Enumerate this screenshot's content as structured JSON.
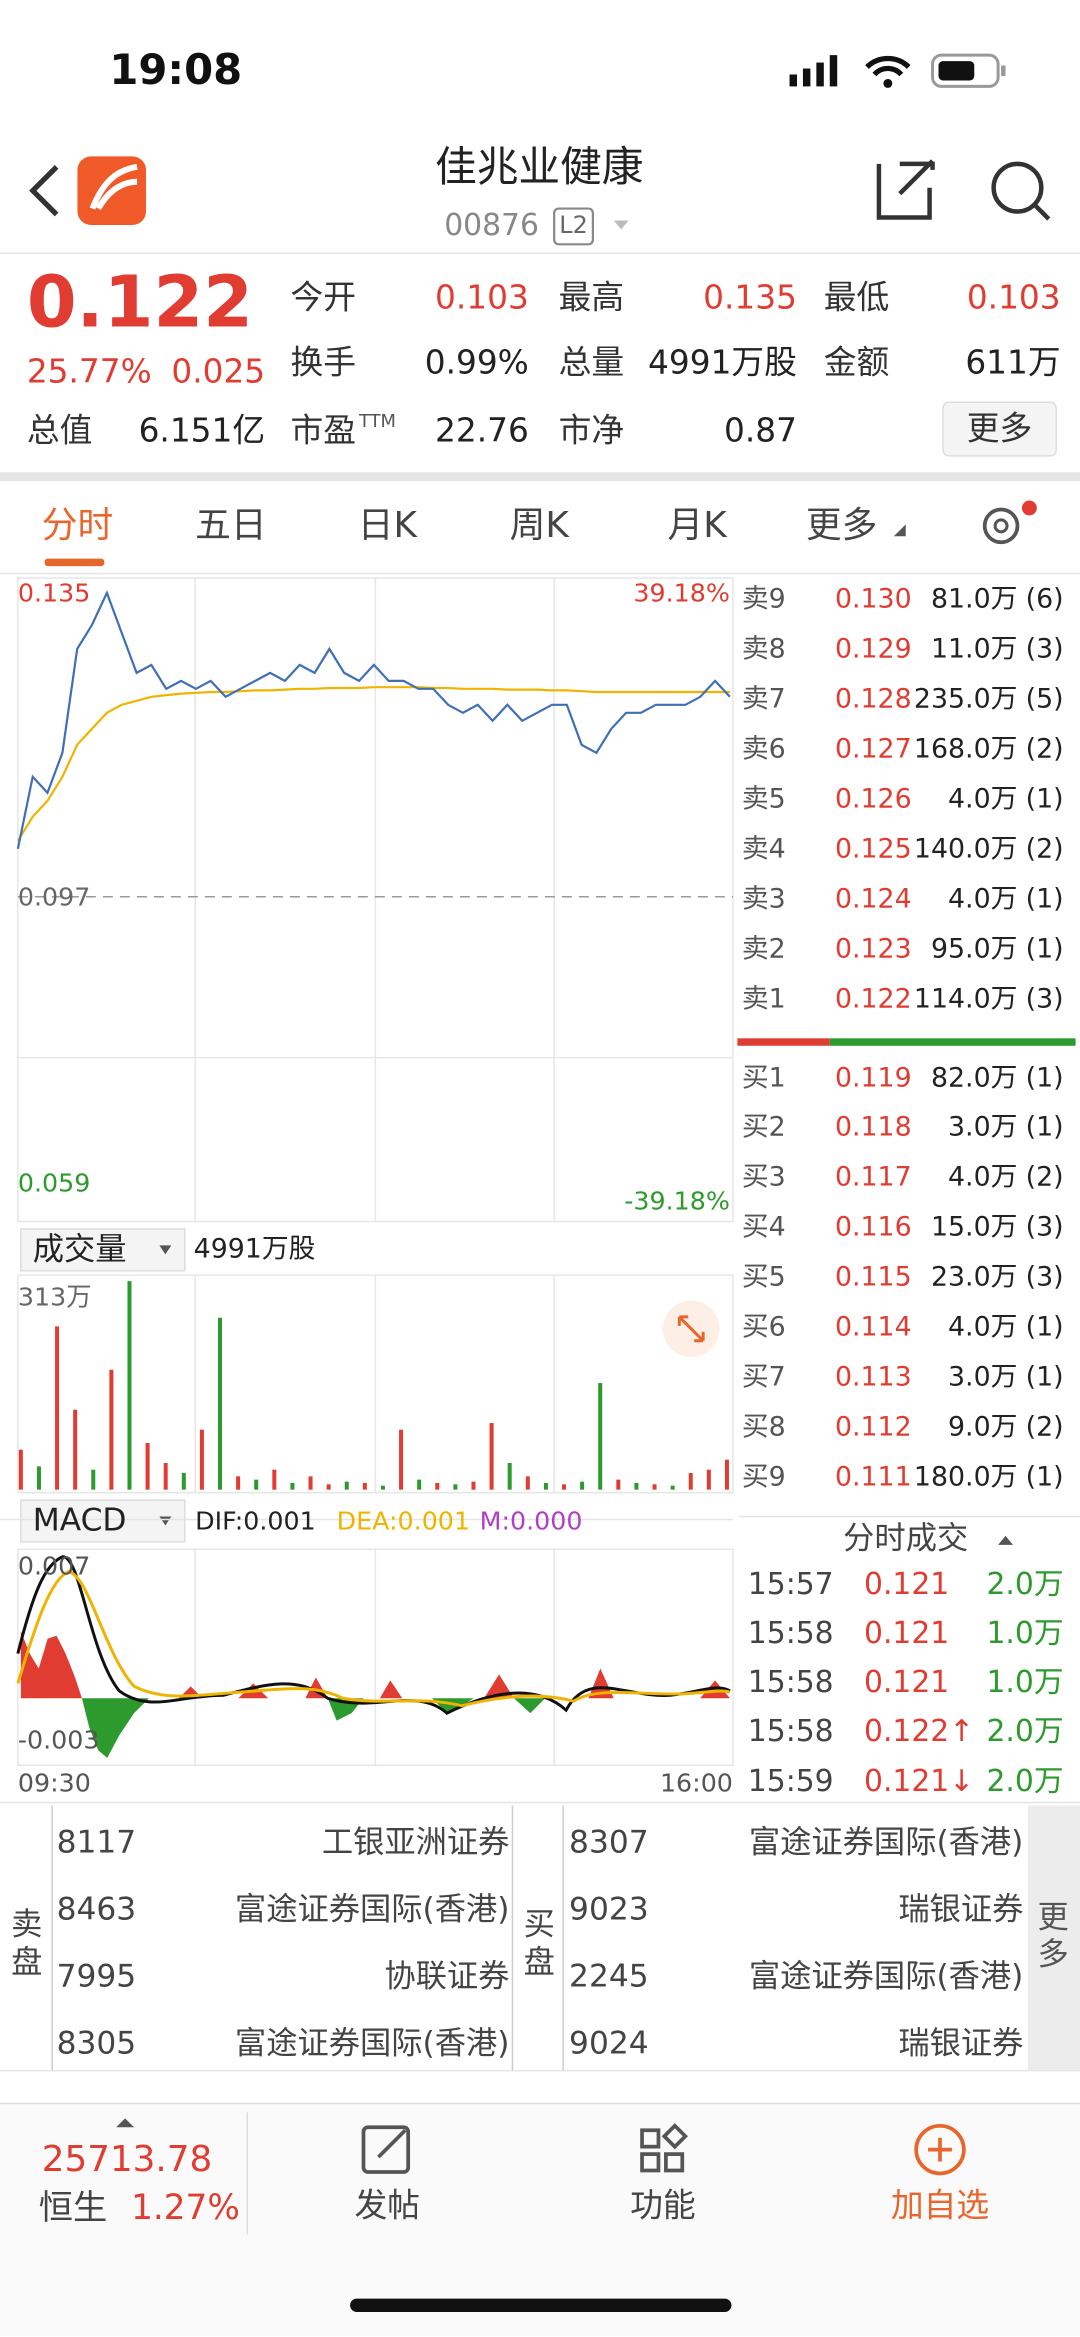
{
  "status": {
    "time": "19:08"
  },
  "header": {
    "title": "佳兆业健康",
    "code": "00876",
    "level": "L2"
  },
  "quote": {
    "price": "0.122",
    "change_pct": "25.77%",
    "change": "0.025",
    "more": "更多",
    "stats": [
      {
        "label": "今开",
        "value": "0.103",
        "color": "#e03c31"
      },
      {
        "label": "最高",
        "value": "0.135",
        "color": "#e03c31"
      },
      {
        "label": "最低",
        "value": "0.103",
        "color": "#e03c31"
      },
      {
        "label": "换手",
        "value": "0.99%",
        "color": "#222"
      },
      {
        "label": "总量",
        "value": "4991万股",
        "color": "#222"
      },
      {
        "label": "金额",
        "value": "611万",
        "color": "#222"
      },
      {
        "label": "总值",
        "value": "6.151亿",
        "color": "#222"
      },
      {
        "label": "市盈",
        "sup": "TTM",
        "value": "22.76",
        "color": "#222"
      },
      {
        "label": "市净",
        "value": "0.87",
        "color": "#222"
      }
    ]
  },
  "tabs": [
    "分时",
    "五日",
    "日K",
    "周K",
    "月K",
    "更多"
  ],
  "intraday": {
    "type": "line",
    "ylim": [
      0.059,
      0.135
    ],
    "yticks": [
      0.135,
      0.097,
      0.059
    ],
    "pct_top": "39.18%",
    "pct_bottom": "-39.18%",
    "price": [
      0.103,
      0.112,
      0.11,
      0.115,
      0.128,
      0.131,
      0.135,
      0.13,
      0.125,
      0.126,
      0.123,
      0.124,
      0.123,
      0.124,
      0.122,
      0.123,
      0.124,
      0.125,
      0.124,
      0.126,
      0.125,
      0.128,
      0.125,
      0.124,
      0.126,
      0.124,
      0.124,
      0.123,
      0.123,
      0.121,
      0.12,
      0.121,
      0.119,
      0.121,
      0.119,
      0.12,
      0.121,
      0.121,
      0.116,
      0.115,
      0.118,
      0.12,
      0.12,
      0.121,
      0.121,
      0.121,
      0.122,
      0.124,
      0.122
    ],
    "avg": [
      0.104,
      0.107,
      0.109,
      0.112,
      0.116,
      0.118,
      0.12,
      0.121,
      0.1215,
      0.122,
      0.1222,
      0.1224,
      0.1225,
      0.1226,
      0.1226,
      0.1227,
      0.1228,
      0.1228,
      0.1229,
      0.123,
      0.123,
      0.1231,
      0.1231,
      0.1231,
      0.1232,
      0.1232,
      0.1232,
      0.1232,
      0.1231,
      0.1231,
      0.123,
      0.123,
      0.123,
      0.1229,
      0.1229,
      0.1229,
      0.1228,
      0.1228,
      0.1227,
      0.1226,
      0.1226,
      0.1226,
      0.1226,
      0.1226,
      0.1226,
      0.1226,
      0.1226,
      0.1226,
      0.1226
    ],
    "price_color": "#3f6fb5",
    "avg_color": "#f0b400"
  },
  "volume": {
    "type": "bar",
    "label": "成交量",
    "total": "4991万股",
    "max_label": "313万",
    "ylim": [
      0,
      313
    ],
    "values": [
      60,
      35,
      245,
      120,
      30,
      180,
      313,
      70,
      40,
      25,
      90,
      258,
      20,
      15,
      30,
      10,
      20,
      8,
      12,
      10,
      6,
      90,
      15,
      10,
      8,
      12,
      100,
      40,
      20,
      10,
      8,
      12,
      160,
      15,
      10,
      8,
      6,
      25,
      30,
      45
    ],
    "colors": [
      "#e03c31",
      "#2c9a2c",
      "#e03c31",
      "#e03c31",
      "#2c9a2c",
      "#e03c31",
      "#2c9a2c",
      "#e03c31",
      "#e03c31",
      "#2c9a2c",
      "#e03c31",
      "#2c9a2c",
      "#e03c31",
      "#2c9a2c",
      "#e03c31",
      "#2c9a2c",
      "#e03c31",
      "#e03c31",
      "#2c9a2c",
      "#e03c31",
      "#2c9a2c",
      "#e03c31",
      "#2c9a2c",
      "#e03c31",
      "#2c9a2c",
      "#e03c31",
      "#e03c31",
      "#2c9a2c",
      "#e03c31",
      "#2c9a2c",
      "#e03c31",
      "#2c9a2c",
      "#2c9a2c",
      "#e03c31",
      "#2c9a2c",
      "#e03c31",
      "#2c9a2c",
      "#e03c31",
      "#e03c31",
      "#e03c31"
    ]
  },
  "macd": {
    "label": "MACD",
    "dif": "DIF:0.001",
    "dea": "DEA:0.001",
    "m": "M:0.000",
    "top": "0.007",
    "bottom": "-0.003",
    "start": "09:30",
    "end": "16:00"
  },
  "asks": [
    {
      "label": "卖9",
      "price": "0.130",
      "vol": "81.0万",
      "count": "(6)"
    },
    {
      "label": "卖8",
      "price": "0.129",
      "vol": "11.0万",
      "count": "(3)"
    },
    {
      "label": "卖7",
      "price": "0.128",
      "vol": "235.0万",
      "count": "(5)"
    },
    {
      "label": "卖6",
      "price": "0.127",
      "vol": "168.0万",
      "count": "(2)"
    },
    {
      "label": "卖5",
      "price": "0.126",
      "vol": "4.0万",
      "count": "(1)"
    },
    {
      "label": "卖4",
      "price": "0.125",
      "vol": "140.0万",
      "count": "(2)"
    },
    {
      "label": "卖3",
      "price": "0.124",
      "vol": "4.0万",
      "count": "(1)"
    },
    {
      "label": "卖2",
      "price": "0.123",
      "vol": "95.0万",
      "count": "(1)"
    },
    {
      "label": "卖1",
      "price": "0.122",
      "vol": "114.0万",
      "count": "(3)"
    }
  ],
  "bids": [
    {
      "label": "买1",
      "price": "0.119",
      "vol": "82.0万",
      "count": "(1)"
    },
    {
      "label": "买2",
      "price": "0.118",
      "vol": "3.0万",
      "count": "(1)"
    },
    {
      "label": "买3",
      "price": "0.117",
      "vol": "4.0万",
      "count": "(2)"
    },
    {
      "label": "买4",
      "price": "0.116",
      "vol": "15.0万",
      "count": "(3)"
    },
    {
      "label": "买5",
      "price": "0.115",
      "vol": "23.0万",
      "count": "(3)"
    },
    {
      "label": "买6",
      "price": "0.114",
      "vol": "4.0万",
      "count": "(1)"
    },
    {
      "label": "买7",
      "price": "0.113",
      "vol": "3.0万",
      "count": "(1)"
    },
    {
      "label": "买8",
      "price": "0.112",
      "vol": "9.0万",
      "count": "(2)"
    },
    {
      "label": "买9",
      "price": "0.111",
      "vol": "180.0万",
      "count": "(1)"
    }
  ],
  "trades": {
    "title": "分时成交",
    "rows": [
      {
        "time": "15:57",
        "price": "0.121",
        "vol": "2.0万"
      },
      {
        "time": "15:58",
        "price": "0.121",
        "vol": "1.0万"
      },
      {
        "time": "15:58",
        "price": "0.121",
        "vol": "1.0万"
      },
      {
        "time": "15:58",
        "price": "0.122↑",
        "vol": "2.0万"
      },
      {
        "time": "15:59",
        "price": "0.121↓",
        "vol": "2.0万"
      }
    ]
  },
  "brokers": {
    "sell_label": "卖盘",
    "buy_label": "买盘",
    "more": "更多",
    "sell": [
      {
        "code": "8117",
        "name": "工银亚洲证券"
      },
      {
        "code": "8463",
        "name": "富途证券国际(香港)"
      },
      {
        "code": "7995",
        "name": "协联证券"
      },
      {
        "code": "8305",
        "name": "富途证券国际(香港)"
      }
    ],
    "buy": [
      {
        "code": "8307",
        "name": "富途证券国际(香港)"
      },
      {
        "code": "9023",
        "name": "瑞银证券"
      },
      {
        "code": "2245",
        "name": "富途证券国际(香港)"
      },
      {
        "code": "9024",
        "name": "瑞银证券"
      }
    ]
  },
  "bottom": {
    "index_value": "25713.78",
    "index_name": "恒生",
    "index_change": "1.27%",
    "buttons": [
      "发帖",
      "功能",
      "加自选"
    ]
  }
}
